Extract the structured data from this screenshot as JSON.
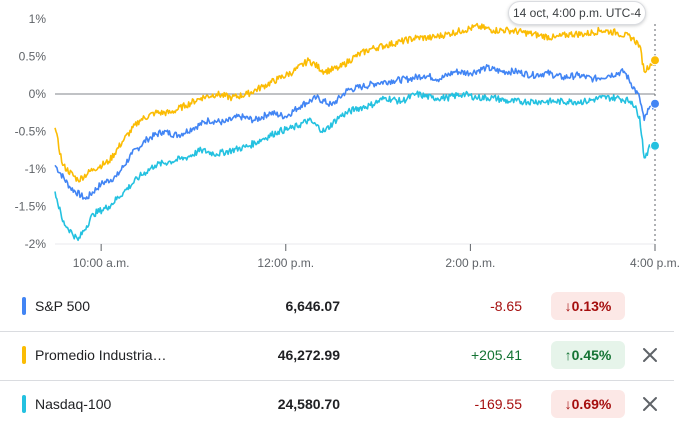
{
  "tooltip": "14 oct, 4:00 p.m. UTC-4",
  "chart_data": {
    "type": "line",
    "title": "",
    "xlabel": "",
    "ylabel": "",
    "x_ticks": [
      "10:00 a.m.",
      "12:00 p.m.",
      "2:00 p.m.",
      "4:00 p.m."
    ],
    "y_ticks": [
      "1%",
      "0.5%",
      "0%",
      "-0.5%",
      "-1%",
      "-1.5%",
      "-2%"
    ],
    "ylim": [
      -2,
      1
    ],
    "x_range": [
      "9:30 a.m.",
      "4:00 p.m."
    ],
    "grid": false,
    "series": [
      {
        "name": "S&P 500",
        "color": "#4285f4",
        "points": [
          [
            "9:30",
            -0.95
          ],
          [
            "9:40",
            -1.25
          ],
          [
            "9:50",
            -1.4
          ],
          [
            "10:00",
            -1.2
          ],
          [
            "10:10",
            -1.1
          ],
          [
            "10:20",
            -0.8
          ],
          [
            "10:30",
            -0.6
          ],
          [
            "10:40",
            -0.5
          ],
          [
            "10:50",
            -0.55
          ],
          [
            "11:00",
            -0.45
          ],
          [
            "11:10",
            -0.35
          ],
          [
            "11:20",
            -0.38
          ],
          [
            "11:30",
            -0.3
          ],
          [
            "11:40",
            -0.35
          ],
          [
            "11:50",
            -0.25
          ],
          [
            "12:00",
            -0.3
          ],
          [
            "12:10",
            -0.15
          ],
          [
            "12:20",
            -0.05
          ],
          [
            "12:30",
            -0.15
          ],
          [
            "12:40",
            0.05
          ],
          [
            "12:50",
            0.1
          ],
          [
            "13:00",
            0.15
          ],
          [
            "13:10",
            0.18
          ],
          [
            "13:20",
            0.2
          ],
          [
            "13:30",
            0.25
          ],
          [
            "13:40",
            0.2
          ],
          [
            "13:50",
            0.3
          ],
          [
            "14:00",
            0.28
          ],
          [
            "14:10",
            0.35
          ],
          [
            "14:20",
            0.3
          ],
          [
            "14:30",
            0.3
          ],
          [
            "14:40",
            0.25
          ],
          [
            "14:50",
            0.28
          ],
          [
            "15:00",
            0.22
          ],
          [
            "15:10",
            0.25
          ],
          [
            "15:20",
            0.2
          ],
          [
            "15:30",
            0.25
          ],
          [
            "15:40",
            0.3
          ],
          [
            "15:50",
            -0.05
          ],
          [
            "15:53",
            -0.35
          ],
          [
            "15:56",
            -0.2
          ],
          [
            "16:00",
            -0.13
          ]
        ]
      },
      {
        "name": "Promedio Industrial Dow Jones",
        "color": "#fbbc04",
        "points": [
          [
            "9:30",
            -0.45
          ],
          [
            "9:35",
            -0.95
          ],
          [
            "9:45",
            -1.15
          ],
          [
            "9:55",
            -1.0
          ],
          [
            "10:05",
            -0.9
          ],
          [
            "10:15",
            -0.6
          ],
          [
            "10:25",
            -0.35
          ],
          [
            "10:35",
            -0.25
          ],
          [
            "10:45",
            -0.25
          ],
          [
            "10:55",
            -0.15
          ],
          [
            "11:05",
            -0.05
          ],
          [
            "11:15",
            0.0
          ],
          [
            "11:25",
            -0.05
          ],
          [
            "11:35",
            0.0
          ],
          [
            "11:45",
            0.1
          ],
          [
            "11:55",
            0.2
          ],
          [
            "12:05",
            0.3
          ],
          [
            "12:15",
            0.45
          ],
          [
            "12:25",
            0.3
          ],
          [
            "12:35",
            0.35
          ],
          [
            "12:45",
            0.5
          ],
          [
            "12:55",
            0.6
          ],
          [
            "13:05",
            0.65
          ],
          [
            "13:15",
            0.7
          ],
          [
            "13:25",
            0.75
          ],
          [
            "13:35",
            0.75
          ],
          [
            "13:45",
            0.8
          ],
          [
            "13:55",
            0.85
          ],
          [
            "14:05",
            0.9
          ],
          [
            "14:15",
            0.85
          ],
          [
            "14:25",
            0.85
          ],
          [
            "14:35",
            0.82
          ],
          [
            "14:45",
            0.78
          ],
          [
            "14:55",
            0.75
          ],
          [
            "15:05",
            0.8
          ],
          [
            "15:15",
            0.8
          ],
          [
            "15:25",
            0.85
          ],
          [
            "15:35",
            0.82
          ],
          [
            "15:45",
            0.75
          ],
          [
            "15:50",
            0.65
          ],
          [
            "15:53",
            0.3
          ],
          [
            "15:57",
            0.4
          ],
          [
            "16:00",
            0.45
          ]
        ]
      },
      {
        "name": "Nasdaq-100",
        "color": "#24c1e0",
        "points": [
          [
            "9:30",
            -1.3
          ],
          [
            "9:35",
            -1.7
          ],
          [
            "9:45",
            -1.95
          ],
          [
            "9:55",
            -1.6
          ],
          [
            "10:05",
            -1.5
          ],
          [
            "10:15",
            -1.3
          ],
          [
            "10:25",
            -1.1
          ],
          [
            "10:35",
            -0.95
          ],
          [
            "10:45",
            -0.9
          ],
          [
            "10:55",
            -0.85
          ],
          [
            "11:05",
            -0.75
          ],
          [
            "11:15",
            -0.8
          ],
          [
            "11:25",
            -0.75
          ],
          [
            "11:35",
            -0.7
          ],
          [
            "11:45",
            -0.6
          ],
          [
            "11:55",
            -0.5
          ],
          [
            "12:05",
            -0.45
          ],
          [
            "12:15",
            -0.35
          ],
          [
            "12:25",
            -0.5
          ],
          [
            "12:35",
            -0.3
          ],
          [
            "12:45",
            -0.2
          ],
          [
            "12:55",
            -0.15
          ],
          [
            "13:05",
            -0.05
          ],
          [
            "13:15",
            -0.1
          ],
          [
            "13:25",
            0.0
          ],
          [
            "13:35",
            -0.05
          ],
          [
            "13:45",
            -0.05
          ],
          [
            "13:55",
            0.0
          ],
          [
            "14:05",
            -0.05
          ],
          [
            "14:15",
            -0.05
          ],
          [
            "14:25",
            -0.1
          ],
          [
            "14:35",
            -0.1
          ],
          [
            "14:45",
            -0.1
          ],
          [
            "14:55",
            -0.1
          ],
          [
            "15:05",
            -0.1
          ],
          [
            "15:15",
            -0.1
          ],
          [
            "15:25",
            -0.05
          ],
          [
            "15:35",
            -0.05
          ],
          [
            "15:45",
            -0.1
          ],
          [
            "15:50",
            -0.3
          ],
          [
            "15:53",
            -0.85
          ],
          [
            "15:57",
            -0.7
          ],
          [
            "16:00",
            -0.69
          ]
        ]
      }
    ]
  },
  "rows": [
    {
      "name": "S&P 500",
      "price": "6,646.07",
      "change": "-8.65",
      "percent": "0.13%",
      "arrow": "↓",
      "direction": "down",
      "color": "#4285f4",
      "removable": false
    },
    {
      "name": "Promedio Industria…",
      "price": "46,272.99",
      "change": "+205.41",
      "percent": "0.45%",
      "arrow": "↑",
      "direction": "up",
      "color": "#fbbc04",
      "removable": true
    },
    {
      "name": "Nasdaq-100",
      "price": "24,580.70",
      "change": "-169.55",
      "percent": "0.69%",
      "arrow": "↓",
      "direction": "down",
      "color": "#24c1e0",
      "removable": true
    }
  ]
}
